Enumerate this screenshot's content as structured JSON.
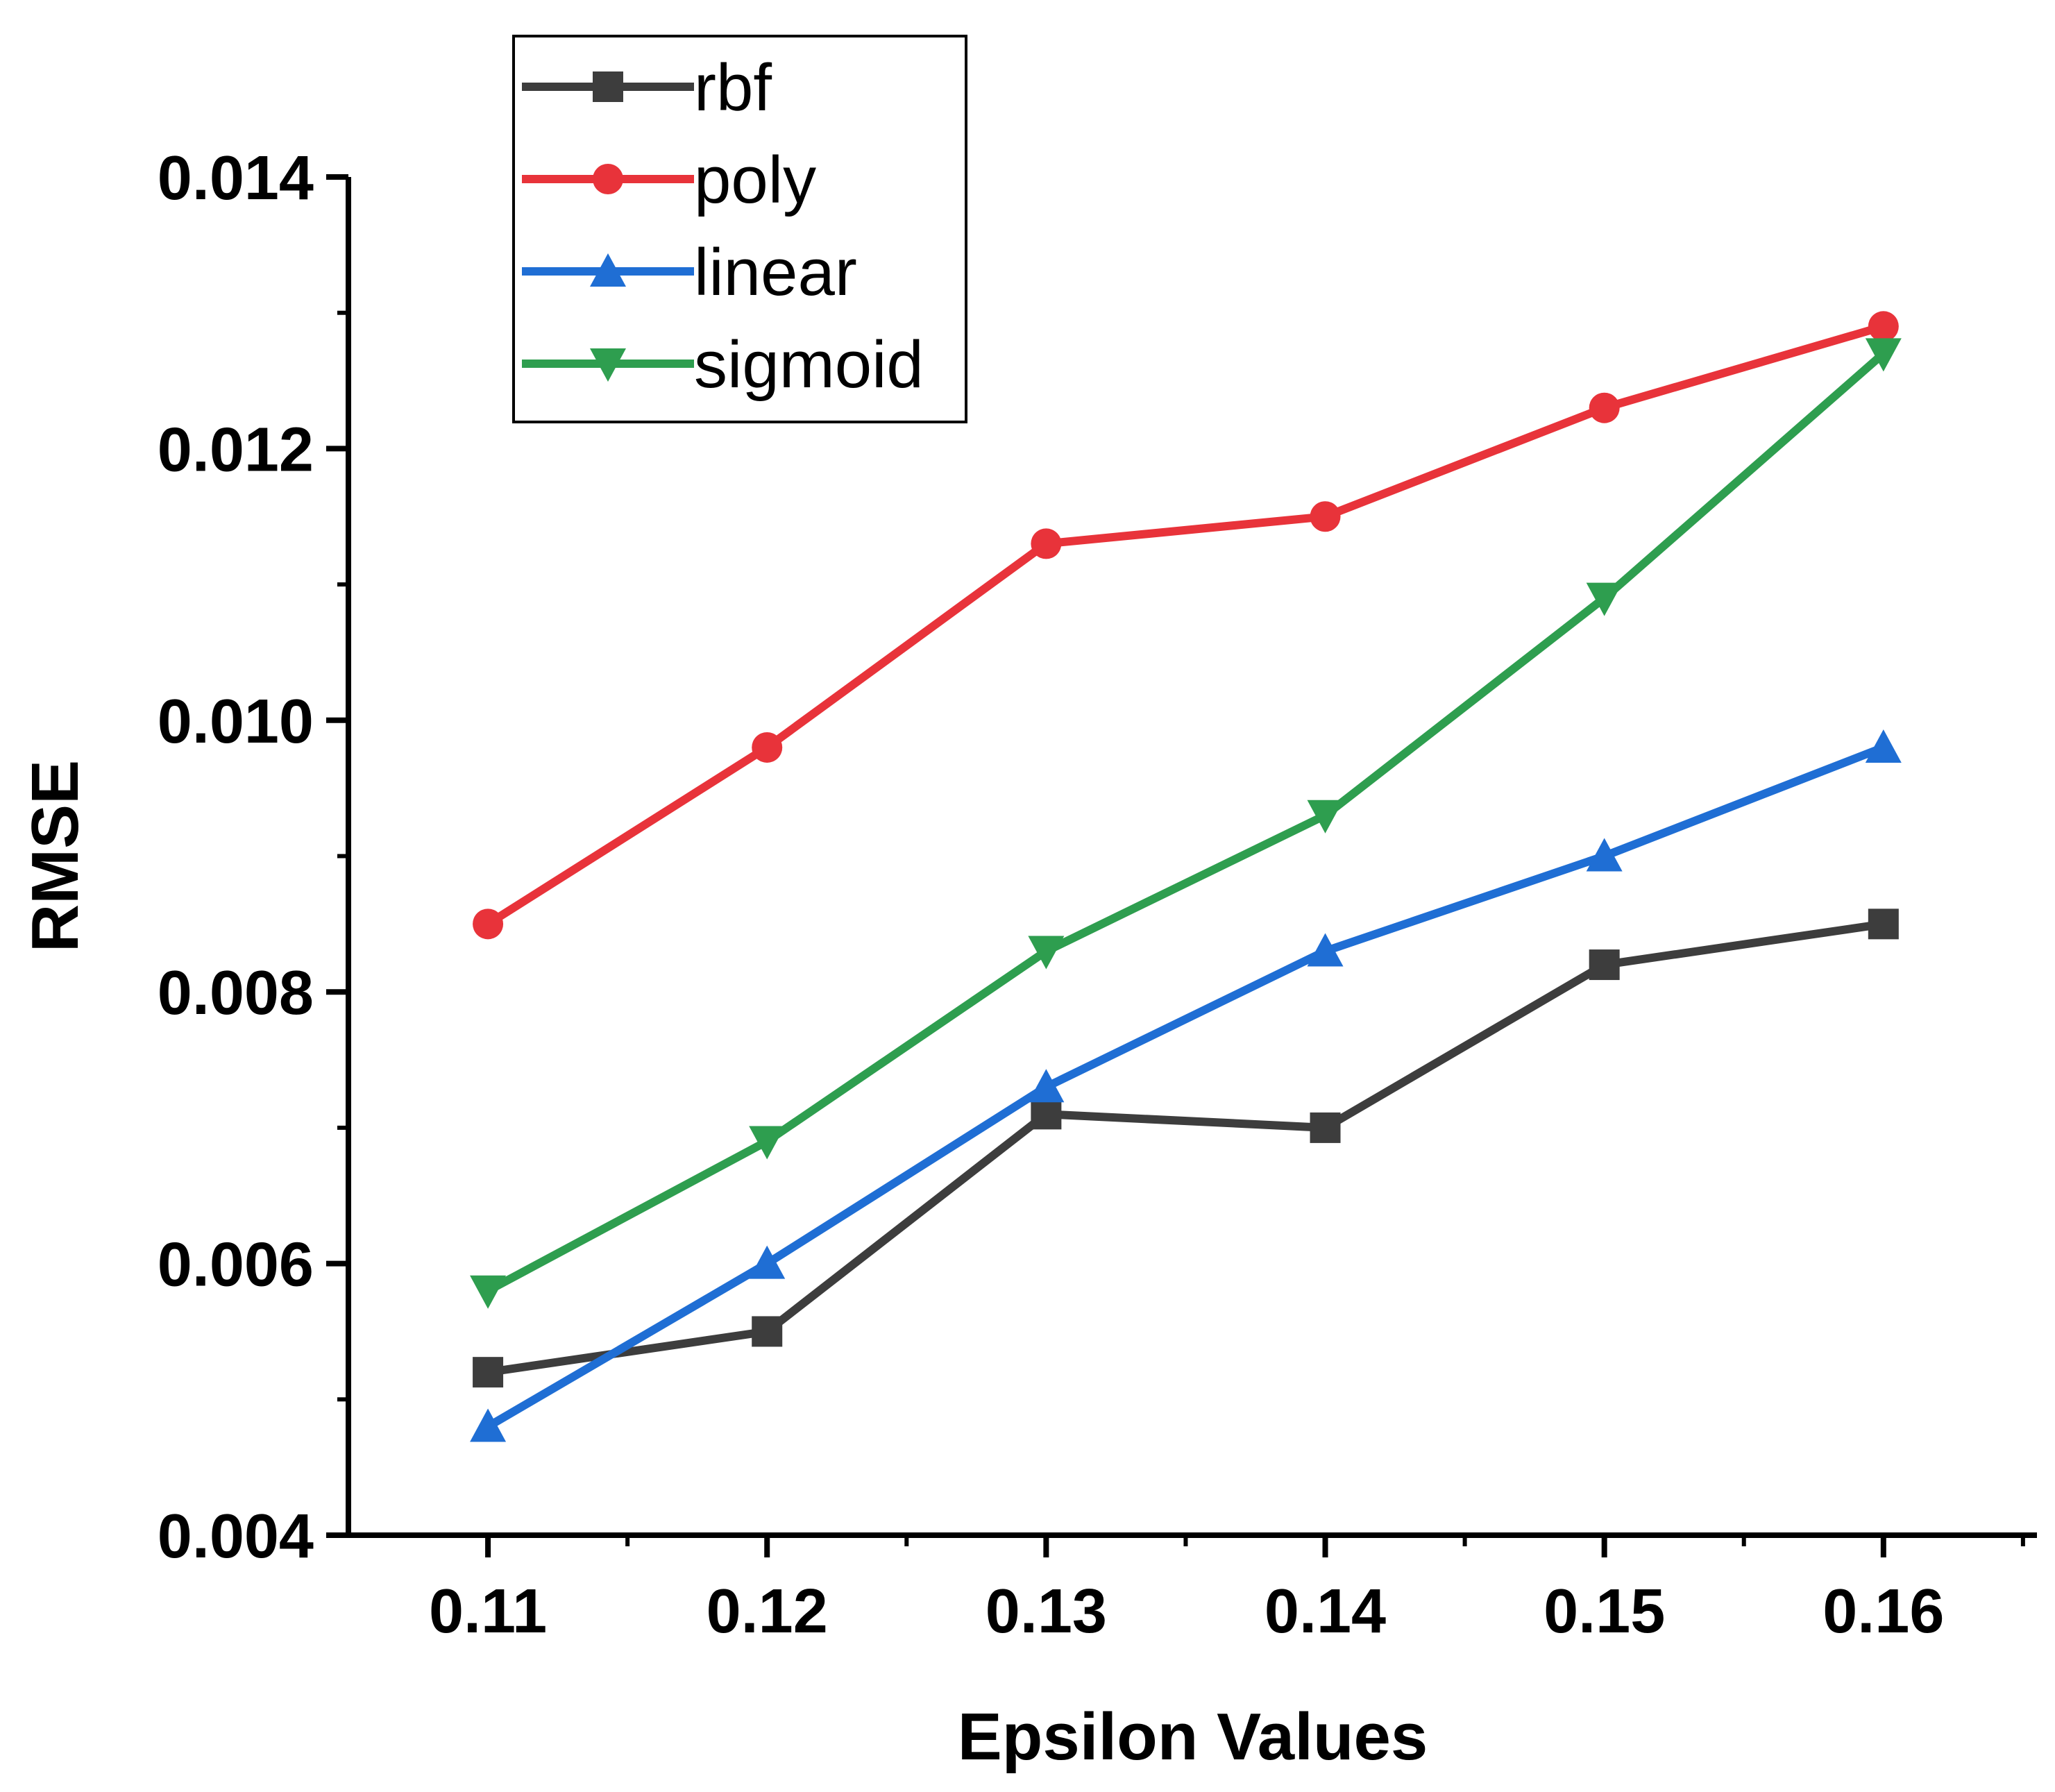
{
  "chart_data": {
    "type": "line",
    "title": "",
    "xlabel": "Epsilon Values",
    "ylabel": "RMSE",
    "x": [
      0.11,
      0.12,
      0.13,
      0.14,
      0.15,
      0.16
    ],
    "x_tick_labels": [
      "0.11",
      "0.12",
      "0.13",
      "0.14",
      "0.15",
      "0.16"
    ],
    "xlim": [
      0.105,
      0.1655
    ],
    "ylim": [
      0.004,
      0.014
    ],
    "y_ticks": [
      0.004,
      0.006,
      0.008,
      0.01,
      0.012,
      0.014
    ],
    "y_tick_labels": [
      "0.004",
      "0.006",
      "0.008",
      "0.010",
      "0.012",
      "0.014"
    ],
    "grid": false,
    "legend_position": "top-left",
    "series": [
      {
        "name": "rbf",
        "color": "#3d3d3d",
        "marker": "square",
        "values": [
          0.0052,
          0.0055,
          0.0071,
          0.007,
          0.0082,
          0.0085
        ]
      },
      {
        "name": "poly",
        "color": "#e8333a",
        "marker": "circle",
        "values": [
          0.0085,
          0.0098,
          0.0113,
          0.0115,
          0.0123,
          0.0129
        ]
      },
      {
        "name": "linear",
        "color": "#1f6ed4",
        "marker": "triangle-up",
        "values": [
          0.0048,
          0.006,
          0.0073,
          0.0083,
          0.009,
          0.0098
        ]
      },
      {
        "name": "sigmoid",
        "color": "#2e9e4f",
        "marker": "triangle-down",
        "values": [
          0.0058,
          0.0069,
          0.0083,
          0.0093,
          0.0109,
          0.0127
        ]
      }
    ]
  }
}
